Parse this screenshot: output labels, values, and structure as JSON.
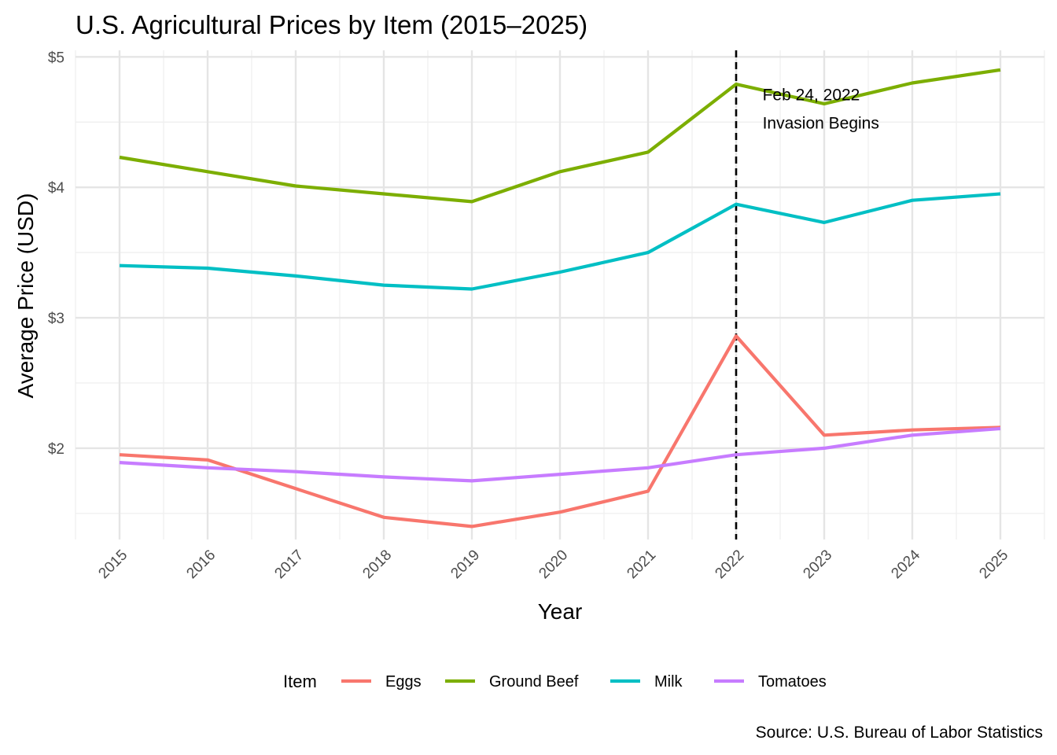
{
  "chart_data": {
    "type": "line",
    "title": "U.S. Agricultural Prices by Item (2015–2025)",
    "xlabel": "Year",
    "ylabel": "Average Price (USD)",
    "x": [
      2015,
      2016,
      2017,
      2018,
      2019,
      2020,
      2021,
      2022,
      2023,
      2024,
      2025
    ],
    "xlim": [
      2014.5,
      2025.5
    ],
    "ylim": [
      1.3,
      5.05
    ],
    "y_ticks": [
      2,
      3,
      4,
      5
    ],
    "y_tick_labels": [
      "$2",
      "$3",
      "$4",
      "$5"
    ],
    "x_tick_labels": [
      "2015",
      "2016",
      "2017",
      "2018",
      "2019",
      "2020",
      "2021",
      "2022",
      "2023",
      "2024",
      "2025"
    ],
    "grid": true,
    "legend": {
      "title": "Item",
      "position": "bottom"
    },
    "series": [
      {
        "name": "Eggs",
        "color": "#F8766D",
        "values": [
          1.95,
          1.91,
          1.69,
          1.47,
          1.4,
          1.51,
          1.67,
          2.86,
          2.1,
          2.14,
          2.16
        ]
      },
      {
        "name": "Ground Beef",
        "color": "#7CAE00",
        "values": [
          4.23,
          4.12,
          4.01,
          3.95,
          3.89,
          4.12,
          4.27,
          4.79,
          4.64,
          4.8,
          4.9
        ]
      },
      {
        "name": "Milk",
        "color": "#00BFC4",
        "values": [
          3.4,
          3.38,
          3.32,
          3.25,
          3.22,
          3.35,
          3.5,
          3.87,
          3.73,
          3.9,
          3.95
        ]
      },
      {
        "name": "Tomatoes",
        "color": "#C77CFF",
        "values": [
          1.89,
          1.85,
          1.82,
          1.78,
          1.75,
          1.8,
          1.85,
          1.95,
          2.0,
          2.1,
          2.15
        ]
      }
    ],
    "annotations": [
      {
        "type": "vline",
        "x": 2022,
        "style": "dashed",
        "color": "#000000"
      },
      {
        "type": "text",
        "x": 2022.3,
        "y": 4.6,
        "lines": [
          "Feb 24, 2022",
          "Invasion Begins"
        ]
      }
    ],
    "caption": "Source: U.S. Bureau of Labor Statistics"
  }
}
